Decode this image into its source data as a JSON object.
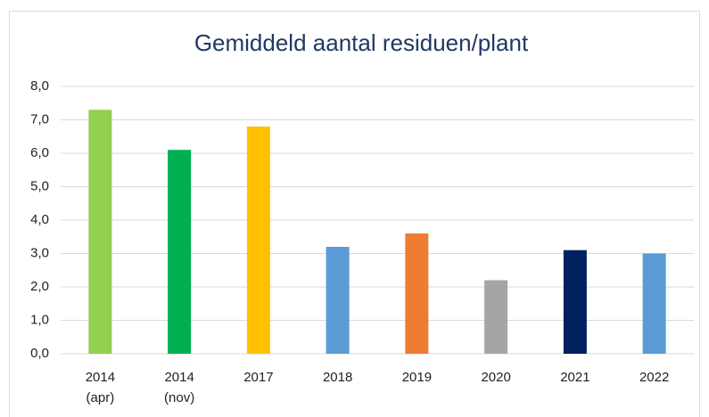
{
  "chart_data": {
    "type": "bar",
    "title": "Gemiddeld aantal residuen/plant",
    "categories": [
      "2014 (apr)",
      "2014 (nov)",
      "2017",
      "2018",
      "2019",
      "2020",
      "2021",
      "2022"
    ],
    "values": [
      7.3,
      6.1,
      6.8,
      3.2,
      3.6,
      2.2,
      3.1,
      3.0
    ],
    "colors": [
      "#92d050",
      "#00b050",
      "#ffc000",
      "#5b9bd5",
      "#ed7d31",
      "#a5a5a5",
      "#002060",
      "#5b9bd5"
    ],
    "ylim": [
      0,
      8
    ],
    "yticks": [
      {
        "value": 0,
        "label": "0,0"
      },
      {
        "value": 1,
        "label": "1,0"
      },
      {
        "value": 2,
        "label": "2,0"
      },
      {
        "value": 3,
        "label": "3,0"
      },
      {
        "value": 4,
        "label": "4,0"
      },
      {
        "value": 5,
        "label": "5,0"
      },
      {
        "value": 6,
        "label": "6,0"
      },
      {
        "value": 7,
        "label": "7,0"
      },
      {
        "value": 8,
        "label": "8,0"
      }
    ],
    "grid": true
  }
}
